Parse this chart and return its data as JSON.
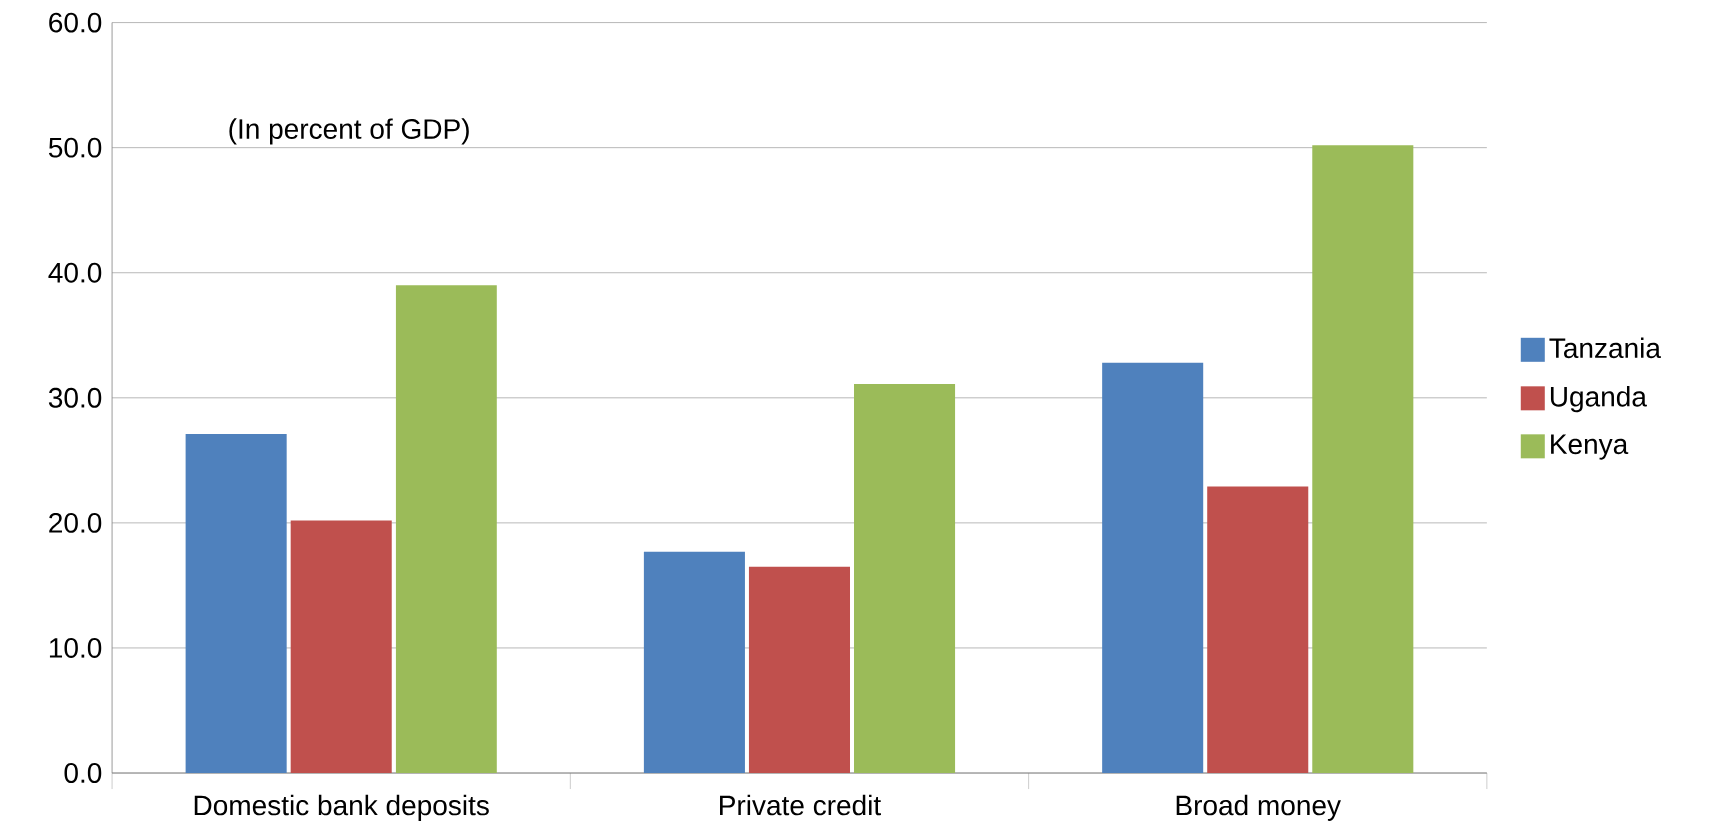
{
  "chart_data": {
    "type": "bar",
    "categories": [
      "Domestic bank deposits",
      "Private credit",
      "Broad money"
    ],
    "series": [
      {
        "name": "Tanzania",
        "color": "#4f81bd",
        "values": [
          27.1,
          17.7,
          32.8
        ]
      },
      {
        "name": "Uganda",
        "color": "#c0504d",
        "values": [
          20.2,
          16.5,
          22.9
        ]
      },
      {
        "name": "Kenya",
        "color": "#9bbb59",
        "values": [
          39.0,
          31.1,
          50.2
        ]
      }
    ],
    "ylim": [
      0,
      60
    ],
    "yticks": [
      {
        "value": 0,
        "label": "0.0"
      },
      {
        "value": 10,
        "label": "10.0"
      },
      {
        "value": 20,
        "label": "20.0"
      },
      {
        "value": 30,
        "label": "30.0"
      },
      {
        "value": 40,
        "label": "40.0"
      },
      {
        "value": 50,
        "label": "50.0"
      },
      {
        "value": 60,
        "label": "60.0"
      }
    ],
    "grid": "y",
    "legend": "right",
    "annotations": [
      "(In percent of GDP)"
    ]
  }
}
